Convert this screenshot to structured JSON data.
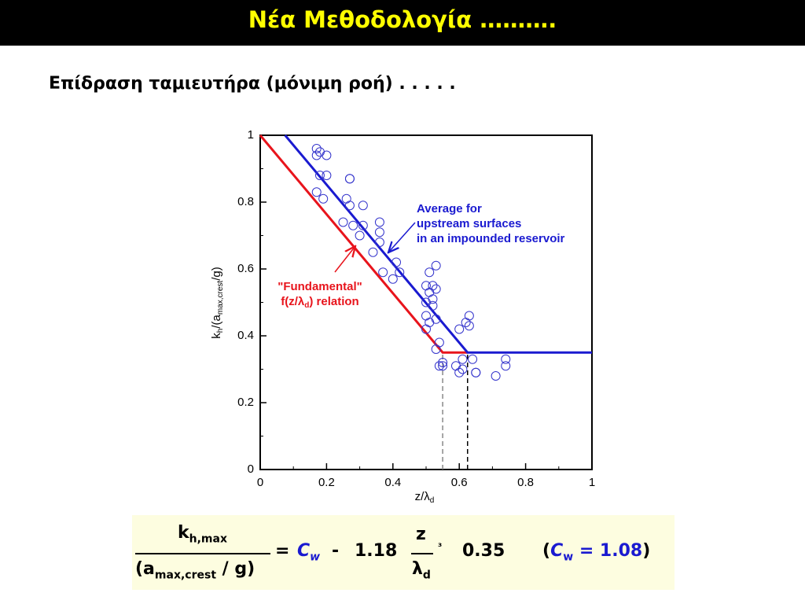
{
  "slide": {
    "title": "Νέα Μεθοδολογία ……….",
    "subtitle": "Επίδραση ταμιευτήρα (μόνιμη ροή) . . . . .",
    "formula": {
      "lhs_num": [
        "k",
        "h,max"
      ],
      "lhs_den": [
        "(a",
        "max,crest",
        " / g)"
      ],
      "equals": "=",
      "cw": [
        "C",
        "w"
      ],
      "minus": "-",
      "coef": "1.18",
      "z": "z",
      "lambda": [
        "λ",
        "d"
      ],
      "op": "³",
      "threshold": "0.35",
      "note": [
        "(",
        "C",
        "w",
        " = 1.08",
        ")"
      ]
    }
  },
  "chart_data": {
    "type": "scatter",
    "x_label": [
      "z/λ",
      "d"
    ],
    "y_label": [
      "k",
      "h",
      "/(a",
      "max,crest",
      "/g)"
    ],
    "xlim": [
      0,
      1
    ],
    "ylim": [
      0,
      1
    ],
    "xticks": [
      0,
      0.2,
      0.4,
      0.6,
      0.8,
      1
    ],
    "yticks": [
      0,
      0.2,
      0.4,
      0.6,
      0.8,
      1
    ],
    "annotations": {
      "average": [
        "Average for",
        "upstream surfaces",
        "in an impounded reservoir"
      ],
      "fundamental": [
        "\"Fundamental\"",
        "f(z/λ",
        "d",
        ") relation"
      ]
    },
    "series": [
      {
        "mode": "markers",
        "color": "#3434cc",
        "x": [
          0.17,
          0.18,
          0.17,
          0.2,
          0.2,
          0.18,
          0.17,
          0.19,
          0.27,
          0.27,
          0.26,
          0.27,
          0.31,
          0.25,
          0.28,
          0.31,
          0.3,
          0.36,
          0.36,
          0.36,
          0.34,
          0.37,
          0.4,
          0.41,
          0.42,
          0.53,
          0.51,
          0.5,
          0.52,
          0.53,
          0.51,
          0.52,
          0.5,
          0.52,
          0.5,
          0.51,
          0.53,
          0.5,
          0.54,
          0.53,
          0.55,
          0.54,
          0.55,
          0.6,
          0.62,
          0.63,
          0.63,
          0.61,
          0.61,
          0.64,
          0.59,
          0.6,
          0.65,
          0.65,
          0.71,
          0.74,
          0.74
        ],
        "y": [
          0.96,
          0.95,
          0.94,
          0.94,
          0.88,
          0.88,
          0.83,
          0.81,
          0.87,
          0.87,
          0.81,
          0.79,
          0.79,
          0.74,
          0.73,
          0.73,
          0.7,
          0.74,
          0.71,
          0.68,
          0.65,
          0.59,
          0.57,
          0.62,
          0.59,
          0.61,
          0.59,
          0.55,
          0.55,
          0.54,
          0.53,
          0.51,
          0.5,
          0.49,
          0.46,
          0.44,
          0.45,
          0.42,
          0.38,
          0.36,
          0.32,
          0.31,
          0.31,
          0.42,
          0.44,
          0.46,
          0.43,
          0.33,
          0.3,
          0.33,
          0.31,
          0.29,
          0.29,
          0.29,
          0.28,
          0.31,
          0.33
        ]
      },
      {
        "mode": "lines",
        "color": "#e8141c",
        "x": [
          0,
          0.55,
          0.625
        ],
        "y": [
          1,
          0.35,
          0.35
        ]
      },
      {
        "mode": "lines",
        "color": "#1a1ad0",
        "x": [
          0.075,
          0.625,
          1
        ],
        "y": [
          1,
          0.35,
          0.35
        ]
      }
    ],
    "reference_lines": [
      {
        "x": 0.55,
        "y": 0.35,
        "color": "#888888"
      },
      {
        "x": 0.625,
        "y": 0.35,
        "color": "#000000"
      }
    ]
  }
}
